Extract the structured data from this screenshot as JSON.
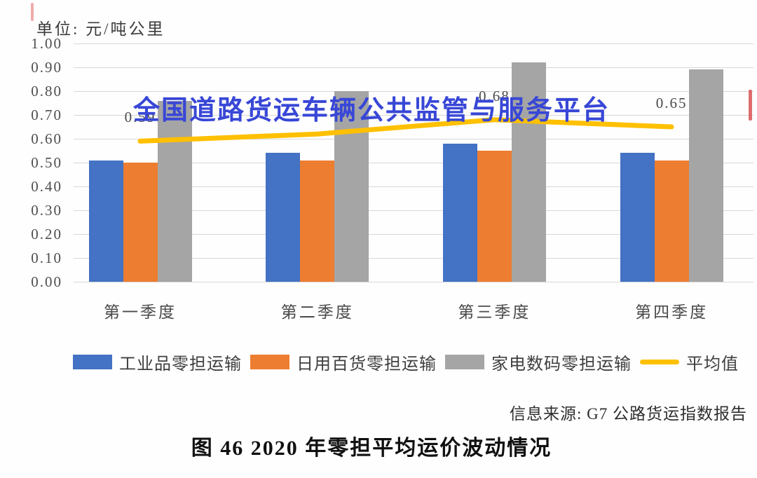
{
  "meta": {
    "unit_label": "单位: 元/吨公里",
    "watermark": "全国道路货运车辆公共监管与服务平台",
    "source": "信息来源: G7 公路货运指数报告",
    "caption": "图 46  2020 年零担平均运价波动情况"
  },
  "colors": {
    "industrial_blue": "#4472C4",
    "daily_orange": "#ED7D31",
    "appliance_gray": "#A5A5A5",
    "average_yellow": "#FFC000",
    "watermark_blue": "#3847D6",
    "gridline": "#D7D7D7"
  },
  "chart_data": {
    "type": "bar",
    "title": "图 46 2020 年零担平均运价波动情况",
    "unit": "元/吨公里",
    "categories": [
      "第一季度",
      "第二季度",
      "第三季度",
      "第四季度"
    ],
    "series": [
      {
        "name": "工业品零担运输",
        "kind": "bar",
        "color": "#4472C4",
        "values": [
          0.51,
          0.54,
          0.58,
          0.54
        ]
      },
      {
        "name": "日用百货零担运输",
        "kind": "bar",
        "color": "#ED7D31",
        "values": [
          0.5,
          0.51,
          0.55,
          0.51
        ]
      },
      {
        "name": "家电数码零担运输",
        "kind": "bar",
        "color": "#A5A5A5",
        "values": [
          0.76,
          0.8,
          0.92,
          0.89
        ]
      },
      {
        "name": "平均值",
        "kind": "line",
        "color": "#FFC000",
        "values": [
          0.59,
          0.62,
          0.68,
          0.65
        ],
        "point_labels": [
          "0.59",
          "",
          "0.68",
          "0.65"
        ]
      }
    ],
    "ylim": [
      0,
      1.0
    ],
    "ytick_step": 0.1,
    "ytick_labels": [
      "0.00",
      "0.10",
      "0.20",
      "0.30",
      "0.40",
      "0.50",
      "0.60",
      "0.70",
      "0.80",
      "0.90",
      "1.00"
    ],
    "grid": true,
    "legend_position": "bottom"
  }
}
